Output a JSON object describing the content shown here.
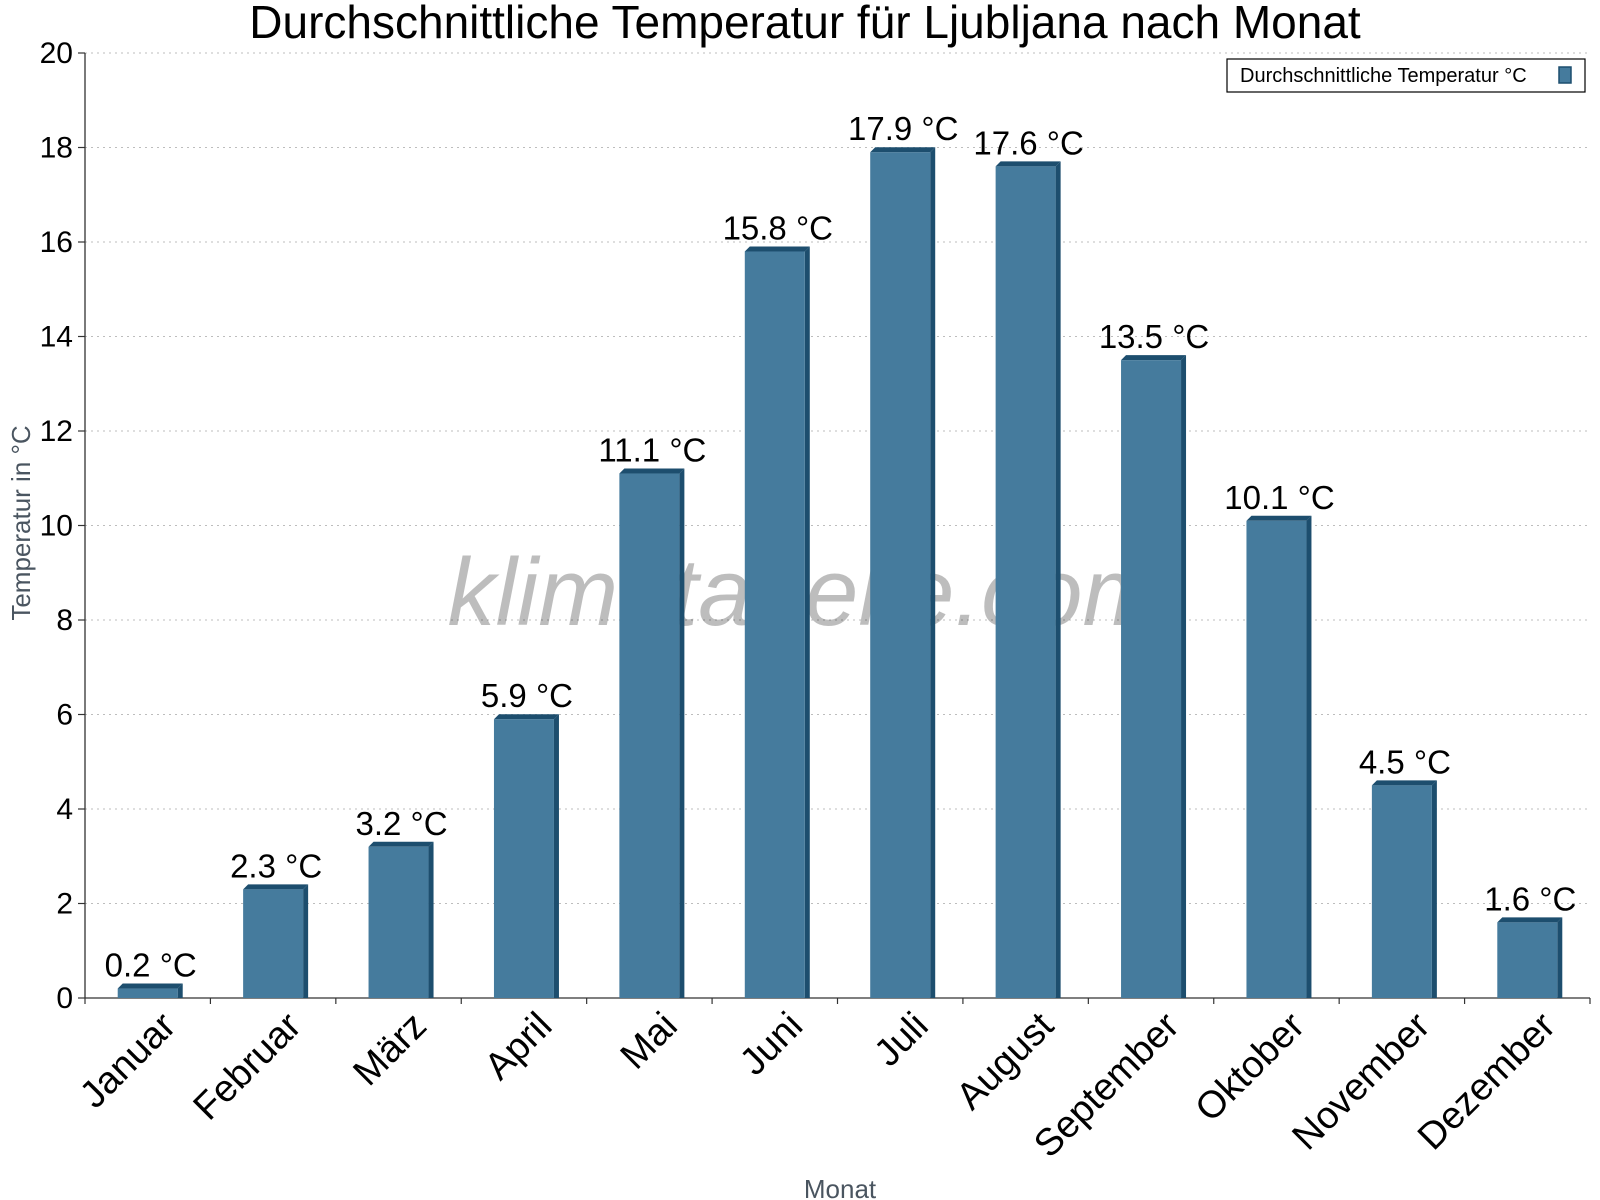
{
  "chart_data": {
    "type": "bar",
    "title": "Durchschnittliche Temperatur für Ljubljana nach Monat",
    "xlabel": "Monat",
    "ylabel": "Temperatur in °C",
    "categories": [
      "Januar",
      "Februar",
      "März",
      "April",
      "Mai",
      "Juni",
      "Juli",
      "August",
      "September",
      "Oktober",
      "November",
      "Dezember"
    ],
    "series": [
      {
        "name": "Durchschnittliche Temperatur °C",
        "values": [
          0.2,
          2.3,
          3.2,
          5.9,
          11.1,
          15.8,
          17.9,
          17.6,
          13.5,
          10.1,
          4.5,
          1.6
        ],
        "labels": [
          "0.2 °C",
          "2.3 °C",
          "3.2 °C",
          "5.9 °C",
          "11.1 °C",
          "15.8 °C",
          "17.9 °C",
          "17.6 °C",
          "13.5 °C",
          "10.1 °C",
          "4.5 °C",
          "1.6 °C"
        ],
        "color": "#457b9d",
        "edge_color": "#1d4e6e"
      }
    ],
    "ylim": [
      0,
      20
    ],
    "yticks": [
      0,
      2,
      4,
      6,
      8,
      10,
      12,
      14,
      16,
      18,
      20
    ],
    "grid": true,
    "legend_position": "top-right"
  },
  "watermark": "klimatabelle.com"
}
